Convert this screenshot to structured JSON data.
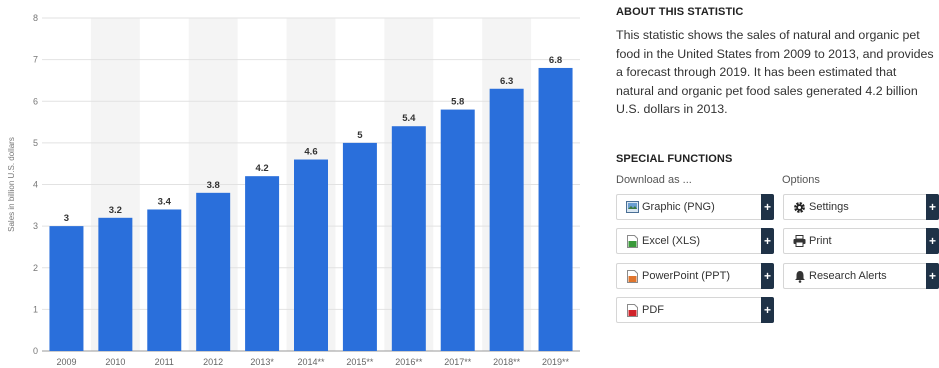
{
  "chart_data": {
    "type": "bar",
    "categories": [
      "2009",
      "2010",
      "2011",
      "2012",
      "2013*",
      "2014**",
      "2015**",
      "2016**",
      "2017**",
      "2018**",
      "2019**"
    ],
    "values": [
      3,
      3.2,
      3.4,
      3.8,
      4.2,
      4.6,
      5,
      5.4,
      5.8,
      6.3,
      6.8
    ],
    "value_labels": [
      "3",
      "3.2",
      "3.4",
      "3.8",
      "4.2",
      "4.6",
      "5",
      "5.4",
      "5.8",
      "6.3",
      "6.8"
    ],
    "ylabel": "Sales in billion U.S. dollars",
    "xlabel": "",
    "ylim": [
      0,
      8
    ],
    "yticks": [
      0,
      1,
      2,
      3,
      4,
      5,
      6,
      7,
      8
    ],
    "grid": true,
    "bar_color": "#2a6fdb",
    "alt_band_color": "#f4f4f4"
  },
  "about": {
    "heading": "ABOUT THIS STATISTIC",
    "text": "This statistic shows the sales of natural and organic pet food in the United States from 2009 to 2013, and provides a forecast through 2019. It has been estimated that natural and organic pet food sales generated 4.2 billion U.S. dollars in 2013."
  },
  "special_functions": {
    "heading": "SPECIAL FUNCTIONS",
    "download_label": "Download as ...",
    "options_label": "Options",
    "plus": "+",
    "download_buttons": [
      {
        "label": "Graphic (PNG)",
        "icon": "image-icon"
      },
      {
        "label": "Excel (XLS)",
        "icon": "excel-icon"
      },
      {
        "label": "PowerPoint (PPT)",
        "icon": "powerpoint-icon"
      },
      {
        "label": "PDF",
        "icon": "pdf-icon"
      }
    ],
    "option_buttons": [
      {
        "label": "Settings",
        "icon": "gear-icon"
      },
      {
        "label": "Print",
        "icon": "printer-icon"
      },
      {
        "label": "Research Alerts",
        "icon": "bell-icon"
      }
    ]
  }
}
